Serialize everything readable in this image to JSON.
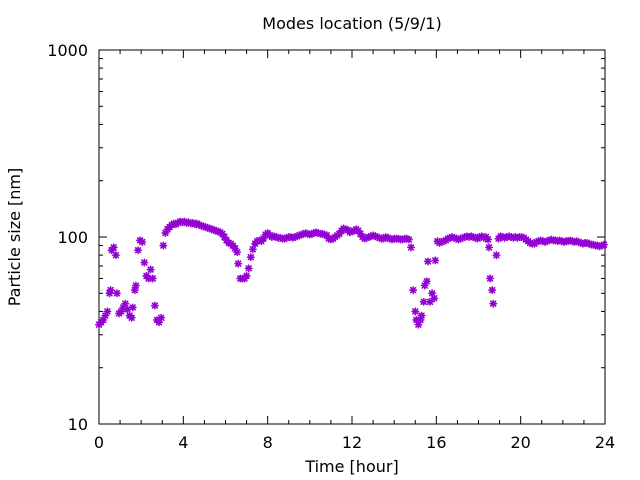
{
  "chart_data": {
    "type": "scatter",
    "title": "Modes location (5/9/1)",
    "xlabel": "Time [hour]",
    "ylabel": "Particle size [nm]",
    "xlim": [
      0,
      24
    ],
    "ylim": [
      10,
      1000
    ],
    "yscale": "log",
    "grid": false,
    "legend": "none",
    "marker": "asterisk",
    "color": "#9400d3",
    "x_ticks": [
      0,
      4,
      8,
      12,
      16,
      20,
      24
    ],
    "y_ticks": [
      10,
      100,
      1000
    ],
    "x_tick_labels": [
      "0",
      "4",
      "8",
      "12",
      "16",
      "20",
      "24"
    ],
    "y_tick_labels": [
      "10",
      "100",
      "1000"
    ],
    "series": [
      {
        "points": [
          [
            0.0,
            34
          ],
          [
            0.1,
            35
          ],
          [
            0.2,
            36
          ],
          [
            0.3,
            38
          ],
          [
            0.4,
            40
          ],
          [
            0.5,
            50
          ],
          [
            0.55,
            52
          ],
          [
            0.6,
            85
          ],
          [
            0.7,
            88
          ],
          [
            0.8,
            80
          ],
          [
            0.85,
            50
          ],
          [
            0.95,
            39
          ],
          [
            1.05,
            40
          ],
          [
            1.15,
            42
          ],
          [
            1.25,
            44
          ],
          [
            1.35,
            41
          ],
          [
            1.45,
            38
          ],
          [
            1.55,
            37
          ],
          [
            1.6,
            42
          ],
          [
            1.7,
            52
          ],
          [
            1.75,
            55
          ],
          [
            1.85,
            85
          ],
          [
            1.95,
            96
          ],
          [
            2.05,
            94
          ],
          [
            2.15,
            73
          ],
          [
            2.25,
            62
          ],
          [
            2.35,
            60
          ],
          [
            2.45,
            67
          ],
          [
            2.55,
            60
          ],
          [
            2.65,
            43
          ],
          [
            2.75,
            36
          ],
          [
            2.85,
            35
          ],
          [
            2.95,
            37
          ],
          [
            3.05,
            90
          ],
          [
            3.15,
            105
          ],
          [
            3.25,
            110
          ],
          [
            3.35,
            113
          ],
          [
            3.45,
            116
          ],
          [
            3.55,
            118
          ],
          [
            3.65,
            117
          ],
          [
            3.75,
            119
          ],
          [
            3.85,
            121
          ],
          [
            3.95,
            120
          ],
          [
            4.05,
            121
          ],
          [
            4.15,
            119
          ],
          [
            4.25,
            120
          ],
          [
            4.35,
            118
          ],
          [
            4.45,
            119
          ],
          [
            4.55,
            117
          ],
          [
            4.65,
            118
          ],
          [
            4.75,
            116
          ],
          [
            4.85,
            115
          ],
          [
            4.95,
            114
          ],
          [
            5.05,
            113
          ],
          [
            5.15,
            112
          ],
          [
            5.25,
            111
          ],
          [
            5.35,
            110
          ],
          [
            5.45,
            109
          ],
          [
            5.55,
            108
          ],
          [
            5.65,
            107
          ],
          [
            5.75,
            106
          ],
          [
            5.85,
            104
          ],
          [
            5.95,
            100
          ],
          [
            6.05,
            96
          ],
          [
            6.15,
            93
          ],
          [
            6.25,
            92
          ],
          [
            6.35,
            90
          ],
          [
            6.45,
            87
          ],
          [
            6.55,
            83
          ],
          [
            6.6,
            72
          ],
          [
            6.7,
            60
          ],
          [
            6.8,
            60
          ],
          [
            6.9,
            60
          ],
          [
            7.0,
            62
          ],
          [
            7.1,
            68
          ],
          [
            7.2,
            78
          ],
          [
            7.3,
            86
          ],
          [
            7.4,
            92
          ],
          [
            7.5,
            95
          ],
          [
            7.6,
            96
          ],
          [
            7.7,
            95
          ],
          [
            7.8,
            98
          ],
          [
            7.9,
            103
          ],
          [
            8.0,
            105
          ],
          [
            8.1,
            102
          ],
          [
            8.2,
            100
          ],
          [
            8.3,
            101
          ],
          [
            8.4,
            100
          ],
          [
            8.5,
            99
          ],
          [
            8.6,
            99
          ],
          [
            8.7,
            98
          ],
          [
            8.8,
            98
          ],
          [
            8.9,
            99
          ],
          [
            9.0,
            100
          ],
          [
            9.1,
            100
          ],
          [
            9.2,
            99
          ],
          [
            9.3,
            100
          ],
          [
            9.4,
            101
          ],
          [
            9.5,
            102
          ],
          [
            9.6,
            103
          ],
          [
            9.7,
            104
          ],
          [
            9.8,
            105
          ],
          [
            9.9,
            104
          ],
          [
            10.0,
            103
          ],
          [
            10.1,
            104
          ],
          [
            10.2,
            105
          ],
          [
            10.3,
            106
          ],
          [
            10.4,
            105
          ],
          [
            10.5,
            104
          ],
          [
            10.6,
            104
          ],
          [
            10.7,
            103
          ],
          [
            10.8,
            102
          ],
          [
            10.9,
            98
          ],
          [
            11.0,
            97
          ],
          [
            11.1,
            98
          ],
          [
            11.2,
            100
          ],
          [
            11.3,
            102
          ],
          [
            11.4,
            104
          ],
          [
            11.5,
            108
          ],
          [
            11.6,
            111
          ],
          [
            11.7,
            110
          ],
          [
            11.8,
            109
          ],
          [
            11.9,
            106
          ],
          [
            12.0,
            107
          ],
          [
            12.1,
            108
          ],
          [
            12.2,
            110
          ],
          [
            12.3,
            108
          ],
          [
            12.4,
            104
          ],
          [
            12.5,
            100
          ],
          [
            12.6,
            98
          ],
          [
            12.7,
            99
          ],
          [
            12.8,
            100
          ],
          [
            12.9,
            101
          ],
          [
            13.0,
            102
          ],
          [
            13.1,
            101
          ],
          [
            13.2,
            100
          ],
          [
            13.3,
            99
          ],
          [
            13.4,
            98
          ],
          [
            13.5,
            98
          ],
          [
            13.6,
            100
          ],
          [
            13.7,
            99
          ],
          [
            13.8,
            98
          ],
          [
            13.9,
            97
          ],
          [
            14.0,
            98
          ],
          [
            14.1,
            98
          ],
          [
            14.2,
            98
          ],
          [
            14.3,
            97
          ],
          [
            14.4,
            97
          ],
          [
            14.5,
            98
          ],
          [
            14.6,
            98
          ],
          [
            14.7,
            97
          ],
          [
            14.8,
            88
          ],
          [
            14.9,
            52
          ],
          [
            15.0,
            40
          ],
          [
            15.05,
            36
          ],
          [
            15.15,
            34
          ],
          [
            15.25,
            36
          ],
          [
            15.3,
            38
          ],
          [
            15.4,
            45
          ],
          [
            15.45,
            55
          ],
          [
            15.55,
            58
          ],
          [
            15.6,
            74
          ],
          [
            15.7,
            45
          ],
          [
            15.8,
            50
          ],
          [
            15.9,
            47
          ],
          [
            15.95,
            75
          ],
          [
            16.05,
            95
          ],
          [
            16.15,
            93
          ],
          [
            16.25,
            94
          ],
          [
            16.35,
            95
          ],
          [
            16.45,
            96
          ],
          [
            16.55,
            98
          ],
          [
            16.65,
            99
          ],
          [
            16.75,
            100
          ],
          [
            16.85,
            99
          ],
          [
            16.95,
            98
          ],
          [
            17.05,
            97
          ],
          [
            17.15,
            98
          ],
          [
            17.25,
            99
          ],
          [
            17.35,
            100
          ],
          [
            17.45,
            101
          ],
          [
            17.55,
            100
          ],
          [
            17.65,
            101
          ],
          [
            17.75,
            100
          ],
          [
            17.85,
            99
          ],
          [
            17.95,
            98
          ],
          [
            18.05,
            100
          ],
          [
            18.15,
            101
          ],
          [
            18.25,
            99
          ],
          [
            18.35,
            100
          ],
          [
            18.45,
            97
          ],
          [
            18.5,
            88
          ],
          [
            18.55,
            60
          ],
          [
            18.65,
            52
          ],
          [
            18.7,
            44
          ],
          [
            18.85,
            80
          ],
          [
            18.95,
            98
          ],
          [
            19.05,
            101
          ],
          [
            19.15,
            100
          ],
          [
            19.25,
            99
          ],
          [
            19.35,
            100
          ],
          [
            19.45,
            101
          ],
          [
            19.55,
            100
          ],
          [
            19.65,
            99
          ],
          [
            19.75,
            100
          ],
          [
            19.85,
            99
          ],
          [
            19.95,
            100
          ],
          [
            20.05,
            100
          ],
          [
            20.15,
            99
          ],
          [
            20.25,
            97
          ],
          [
            20.35,
            95
          ],
          [
            20.45,
            93
          ],
          [
            20.55,
            92
          ],
          [
            20.65,
            92
          ],
          [
            20.75,
            94
          ],
          [
            20.85,
            95
          ],
          [
            20.95,
            96
          ],
          [
            21.05,
            95
          ],
          [
            21.15,
            94
          ],
          [
            21.25,
            95
          ],
          [
            21.35,
            96
          ],
          [
            21.45,
            97
          ],
          [
            21.55,
            96
          ],
          [
            21.65,
            96
          ],
          [
            21.75,
            95
          ],
          [
            21.85,
            96
          ],
          [
            21.95,
            95
          ],
          [
            22.05,
            94
          ],
          [
            22.15,
            95
          ],
          [
            22.25,
            95
          ],
          [
            22.35,
            96
          ],
          [
            22.45,
            95
          ],
          [
            22.55,
            94
          ],
          [
            22.65,
            95
          ],
          [
            22.75,
            94
          ],
          [
            22.85,
            93
          ],
          [
            22.95,
            92
          ],
          [
            23.05,
            93
          ],
          [
            23.15,
            93
          ],
          [
            23.25,
            92
          ],
          [
            23.35,
            91
          ],
          [
            23.45,
            91
          ],
          [
            23.55,
            90
          ],
          [
            23.65,
            90
          ],
          [
            23.75,
            89
          ],
          [
            23.85,
            90
          ],
          [
            23.95,
            91
          ]
        ]
      }
    ]
  }
}
